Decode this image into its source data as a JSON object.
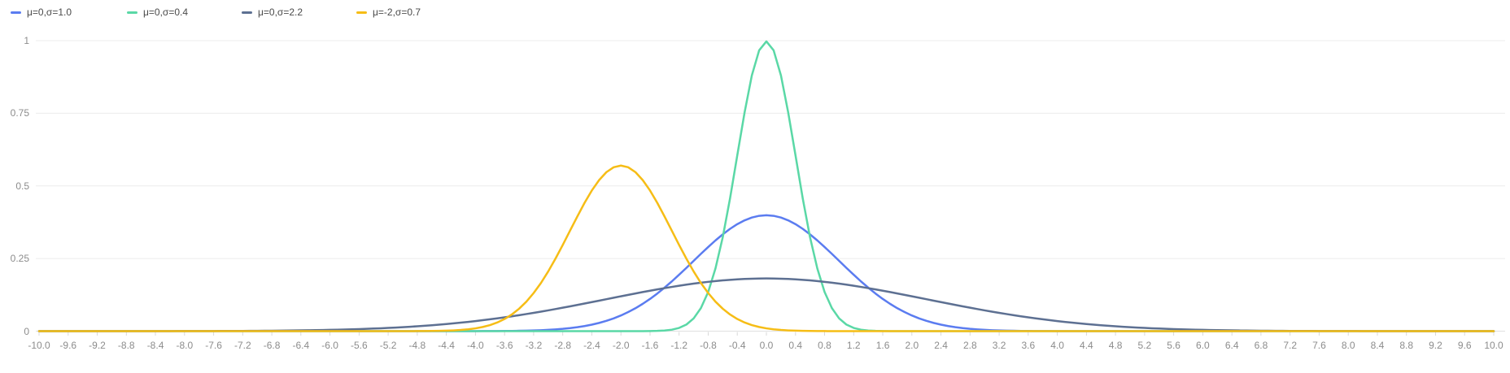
{
  "theme": {
    "background": "#ffffff",
    "grid_color": "#ececec",
    "axis_line_color": "#e0e0e0",
    "tick_color": "#d9d9d9",
    "axis_label_color": "#8c8c8c",
    "legend_label_color": "#4a4a4a"
  },
  "chart_data": {
    "type": "line",
    "title": "",
    "xlabel": "",
    "ylabel": "",
    "xlim": [
      -10,
      10
    ],
    "ylim": [
      0,
      1
    ],
    "x_sample_step": 0.1,
    "grid": "horizontal-only",
    "legend_position": "top-left",
    "series": [
      {
        "name": "μ=0,σ=1.0",
        "distribution": "normal-pdf",
        "mu": 0,
        "sigma": 1.0,
        "peak_x": 0,
        "peak_y": 0.399,
        "color": "#5b7cf0"
      },
      {
        "name": "μ=0,σ=0.4",
        "distribution": "normal-pdf",
        "mu": 0,
        "sigma": 0.4,
        "peak_x": 0,
        "peak_y": 0.997,
        "color": "#5ad8a6"
      },
      {
        "name": "μ=0,σ=2.2",
        "distribution": "normal-pdf",
        "mu": 0,
        "sigma": 2.2,
        "peak_x": 0,
        "peak_y": 0.181,
        "color": "#5d7092"
      },
      {
        "name": "μ=-2,σ=0.7",
        "distribution": "normal-pdf",
        "mu": -2,
        "sigma": 0.7,
        "peak_x": -2,
        "peak_y": 0.57,
        "color": "#f6bd16"
      }
    ],
    "y_tick_values": [
      0,
      0.25,
      0.5,
      0.75,
      1
    ],
    "y_tick_labels": [
      "0",
      "0.25",
      "0.5",
      "0.75",
      "1"
    ],
    "x_tick_labels": [
      "-10.0",
      "-9.6",
      "-9.2",
      "-8.8",
      "-8.4",
      "-8.0",
      "-7.6",
      "-7.2",
      "-6.8",
      "-6.4",
      "-6.0",
      "-5.6",
      "-5.2",
      "-4.8",
      "-4.4",
      "-4.0",
      "-3.6",
      "-3.2",
      "-2.8",
      "-2.4",
      "-2.0",
      "-1.6",
      "-1.2",
      "-0.8",
      "-0.4",
      "0.0",
      "0.4",
      "0.8",
      "1.2",
      "1.6",
      "2.0",
      "2.4",
      "2.8",
      "3.2",
      "3.6",
      "4.0",
      "4.4",
      "4.8",
      "5.2",
      "5.6",
      "6.0",
      "6.4",
      "6.8",
      "7.2",
      "7.6",
      "8.0",
      "8.4",
      "8.8",
      "9.2",
      "9.6",
      "10.0"
    ]
  }
}
